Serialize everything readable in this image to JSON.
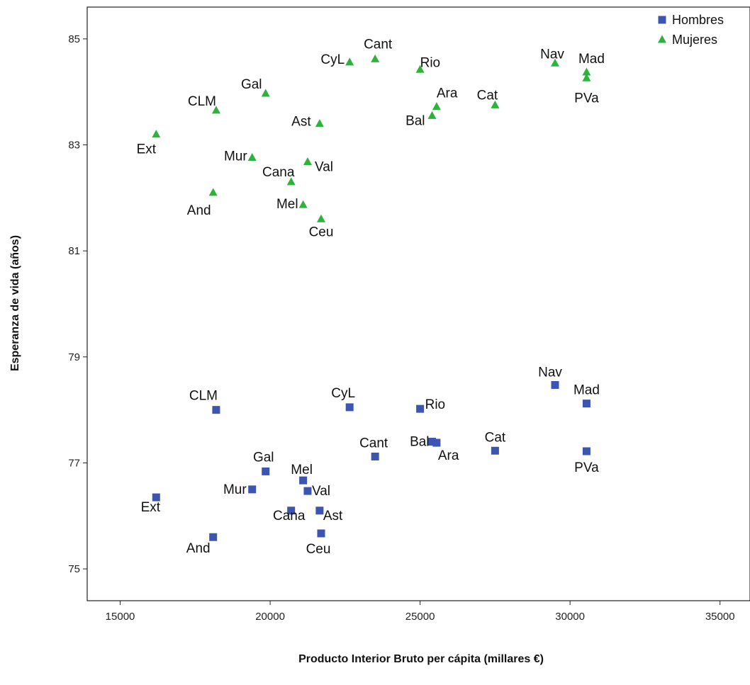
{
  "chart_data": {
    "type": "scatter",
    "xlabel": "Producto Interior Bruto per cápita (millares €)",
    "ylabel": "Esperanza de vida (años)",
    "xlim": [
      13900,
      36000
    ],
    "ylim": [
      74.4,
      85.6
    ],
    "xticks": [
      15000,
      20000,
      25000,
      30000,
      35000
    ],
    "yticks": [
      75,
      77,
      79,
      81,
      83,
      85
    ],
    "grid": false,
    "legend": "top-right",
    "series": [
      {
        "name": "Hombres",
        "marker": "square",
        "color": "#3b55b0",
        "points": [
          {
            "label": "CLM",
            "x": 18200,
            "y": 78.0
          },
          {
            "label": "CyL",
            "x": 22650,
            "y": 78.05
          },
          {
            "label": "Rio",
            "x": 25000,
            "y": 78.02
          },
          {
            "label": "Nav",
            "x": 29500,
            "y": 78.47
          },
          {
            "label": "Mad",
            "x": 30550,
            "y": 78.12
          },
          {
            "label": "Cat",
            "x": 27500,
            "y": 77.23
          },
          {
            "label": "PVa",
            "x": 30550,
            "y": 77.22
          },
          {
            "label": "Bal",
            "x": 25400,
            "y": 77.4
          },
          {
            "label": "Ara",
            "x": 25550,
            "y": 77.38
          },
          {
            "label": "Cant",
            "x": 23500,
            "y": 77.12
          },
          {
            "label": "Gal",
            "x": 19850,
            "y": 76.84
          },
          {
            "label": "Mel",
            "x": 21100,
            "y": 76.67
          },
          {
            "label": "Mur",
            "x": 19400,
            "y": 76.5
          },
          {
            "label": "Val",
            "x": 21250,
            "y": 76.47
          },
          {
            "label": "Ext",
            "x": 16200,
            "y": 76.35
          },
          {
            "label": "Cana",
            "x": 20700,
            "y": 76.1
          },
          {
            "label": "Ast",
            "x": 21650,
            "y": 76.1
          },
          {
            "label": "Ceu",
            "x": 21700,
            "y": 75.67
          },
          {
            "label": "And",
            "x": 18100,
            "y": 75.6
          }
        ]
      },
      {
        "name": "Mujeres",
        "marker": "triangle",
        "color": "#2db33c",
        "points": [
          {
            "label": "CyL",
            "x": 22650,
            "y": 84.56
          },
          {
            "label": "Cant",
            "x": 23500,
            "y": 84.62
          },
          {
            "label": "Rio",
            "x": 25000,
            "y": 84.42
          },
          {
            "label": "Nav",
            "x": 29500,
            "y": 84.54
          },
          {
            "label": "Mad",
            "x": 30550,
            "y": 84.37
          },
          {
            "label": "PVa",
            "x": 30550,
            "y": 84.26
          },
          {
            "label": "Gal",
            "x": 19850,
            "y": 83.97
          },
          {
            "label": "CLM",
            "x": 18200,
            "y": 83.65
          },
          {
            "label": "Ara",
            "x": 25550,
            "y": 83.72
          },
          {
            "label": "Cat",
            "x": 27500,
            "y": 83.75
          },
          {
            "label": "Bal",
            "x": 25400,
            "y": 83.55
          },
          {
            "label": "Ast",
            "x": 21650,
            "y": 83.4
          },
          {
            "label": "Ext",
            "x": 16200,
            "y": 83.2
          },
          {
            "label": "Mur",
            "x": 19400,
            "y": 82.76
          },
          {
            "label": "Val",
            "x": 21250,
            "y": 82.68
          },
          {
            "label": "Cana",
            "x": 20700,
            "y": 82.3
          },
          {
            "label": "And",
            "x": 18100,
            "y": 82.1
          },
          {
            "label": "Mel",
            "x": 21100,
            "y": 81.87
          },
          {
            "label": "Ceu",
            "x": 21700,
            "y": 81.6
          }
        ]
      }
    ]
  }
}
